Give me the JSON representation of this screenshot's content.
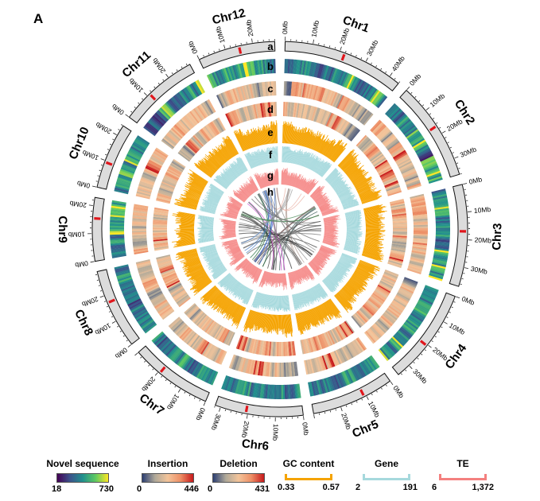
{
  "panel_label": "A",
  "chromosomes": [
    {
      "name": "Chr1",
      "length_mb": 44,
      "ticks": [
        "0Mb",
        "10Mb",
        "20Mb",
        "30Mb",
        "40Mb"
      ]
    },
    {
      "name": "Chr2",
      "length_mb": 36,
      "ticks": [
        "0Mb",
        "10Mb",
        "20Mb",
        "30Mb"
      ]
    },
    {
      "name": "Chr3",
      "length_mb": 37,
      "ticks": [
        "0Mb",
        "10Mb",
        "20Mb",
        "30Mb"
      ]
    },
    {
      "name": "Chr4",
      "length_mb": 35,
      "ticks": [
        "0Mb",
        "10Mb",
        "20Mb",
        "30Mb"
      ]
    },
    {
      "name": "Chr5",
      "length_mb": 30,
      "ticks": [
        "0Mb",
        "10Mb",
        "20Mb"
      ]
    },
    {
      "name": "Chr6",
      "length_mb": 32,
      "ticks": [
        "0Mb",
        "10Mb",
        "20Mb",
        "30Mb"
      ]
    },
    {
      "name": "Chr7",
      "length_mb": 30,
      "ticks": [
        "0Mb",
        "10Mb",
        "20Mb"
      ]
    },
    {
      "name": "Chr8",
      "length_mb": 29,
      "ticks": [
        "0Mb",
        "10Mb",
        "20Mb"
      ]
    },
    {
      "name": "Chr9",
      "length_mb": 23,
      "ticks": [
        "0Mb",
        "10Mb",
        "20Mb"
      ]
    },
    {
      "name": "Chr10",
      "length_mb": 24,
      "ticks": [
        "0Mb",
        "10Mb",
        "20Mb"
      ]
    },
    {
      "name": "Chr11",
      "length_mb": 29,
      "ticks": [
        "0Mb",
        "10Mb",
        "20Mb"
      ]
    },
    {
      "name": "Chr12",
      "length_mb": 28,
      "ticks": [
        "0Mb",
        "10Mb",
        "20Mb"
      ]
    }
  ],
  "track_letters": [
    "a",
    "b",
    "c",
    "d",
    "e",
    "f",
    "g",
    "h"
  ],
  "colors": {
    "ideogram": "#dcdcdc",
    "centromere": "#e0161c",
    "gc": "#f5a300",
    "gene": "#a6d9dd",
    "te": "#f4807f",
    "novel_ramp": [
      "#440154",
      "#3b528b",
      "#21908d",
      "#5ec962",
      "#fde725"
    ],
    "indel_ramp": [
      "#2c3f73",
      "#b0a999",
      "#f3c49a",
      "#ed8f66",
      "#c7191b"
    ]
  },
  "links": [
    {
      "from": "Chr1",
      "to": "Chr5",
      "color": "#b4a19a"
    },
    {
      "from": "Chr1",
      "to": "Chr12",
      "color": "#e9b1a6"
    },
    {
      "from": "Chr2",
      "to": "Chr6",
      "color": "#2f4f4f"
    },
    {
      "from": "Chr2",
      "to": "Chr7",
      "color": "#6b4f4f"
    },
    {
      "from": "Chr3",
      "to": "Chr7",
      "color": "#444444"
    },
    {
      "from": "Chr3",
      "to": "Chr8",
      "color": "#777777"
    },
    {
      "from": "Chr4",
      "to": "Chr8",
      "color": "#555555"
    },
    {
      "from": "Chr4",
      "to": "Chr9",
      "color": "#2b2b2b"
    },
    {
      "from": "Chr5",
      "to": "Chr9",
      "color": "#888888"
    },
    {
      "from": "Chr6",
      "to": "Chr10",
      "color": "#3a3a3a"
    },
    {
      "from": "Chr6",
      "to": "Chr11",
      "color": "#cc44cc"
    },
    {
      "from": "Chr7",
      "to": "Chr11",
      "color": "#1f6b3a"
    },
    {
      "from": "Chr7",
      "to": "Chr12",
      "color": "#3565c4"
    },
    {
      "from": "Chr8",
      "to": "Chr12",
      "color": "#4a7ec4"
    },
    {
      "from": "Chr9",
      "to": "Chr1",
      "color": "#999999"
    },
    {
      "from": "Chr10",
      "to": "Chr2",
      "color": "#4c8c5a"
    },
    {
      "from": "Chr11",
      "to": "Chr3",
      "color": "#666666"
    },
    {
      "from": "Chr12",
      "to": "Chr4",
      "color": "#8f8f8f"
    },
    {
      "from": "Chr5",
      "to": "Chr10",
      "color": "#505050"
    },
    {
      "from": "Chr6",
      "to": "Chr12",
      "color": "#7a7a7a"
    }
  ],
  "legends": {
    "novel": {
      "title": "Novel sequence",
      "min": "18",
      "max": "730"
    },
    "insertion": {
      "title": "Insertion",
      "min": "0",
      "max": "446"
    },
    "deletion": {
      "title": "Deletion",
      "min": "0",
      "max": "431"
    },
    "gc": {
      "title": "GC content",
      "min": "0.33",
      "max": "0.57"
    },
    "gene": {
      "title": "Gene",
      "min": "2",
      "max": "191"
    },
    "te": {
      "title": "TE",
      "min": "6",
      "max": "1,372"
    }
  }
}
